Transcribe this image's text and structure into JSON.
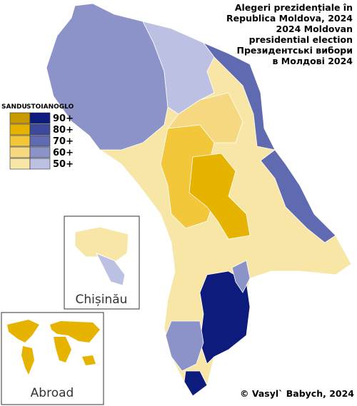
{
  "title_lines": [
    "Alegeri prezidențiale în",
    "Republica Moldova, 2024",
    "2024 Moldovan",
    "presidential election",
    "Президентські вибори",
    "в Молдові 2024"
  ],
  "legend": {
    "headers": [
      "SANDU",
      "STOIANOGLO"
    ],
    "rows": [
      {
        "label": "90+",
        "sandu_color": "#c99a00",
        "stoianoglo_color": "#0d1b7c"
      },
      {
        "label": "80+",
        "sandu_color": "#e6b400",
        "stoianoglo_color": "#3d4a9c"
      },
      {
        "label": "70+",
        "sandu_color": "#f2c73a",
        "stoianoglo_color": "#5f6ab0"
      },
      {
        "label": "60+",
        "sandu_color": "#f5d880",
        "stoianoglo_color": "#8c93c8"
      },
      {
        "label": "50+",
        "sandu_color": "#f8e6a6",
        "stoianoglo_color": "#bcc0e2"
      }
    ]
  },
  "insets": {
    "chisinau": "Chișinău",
    "abroad": "Abroad"
  },
  "credit": "© Vasyl` Babych, 2024"
}
